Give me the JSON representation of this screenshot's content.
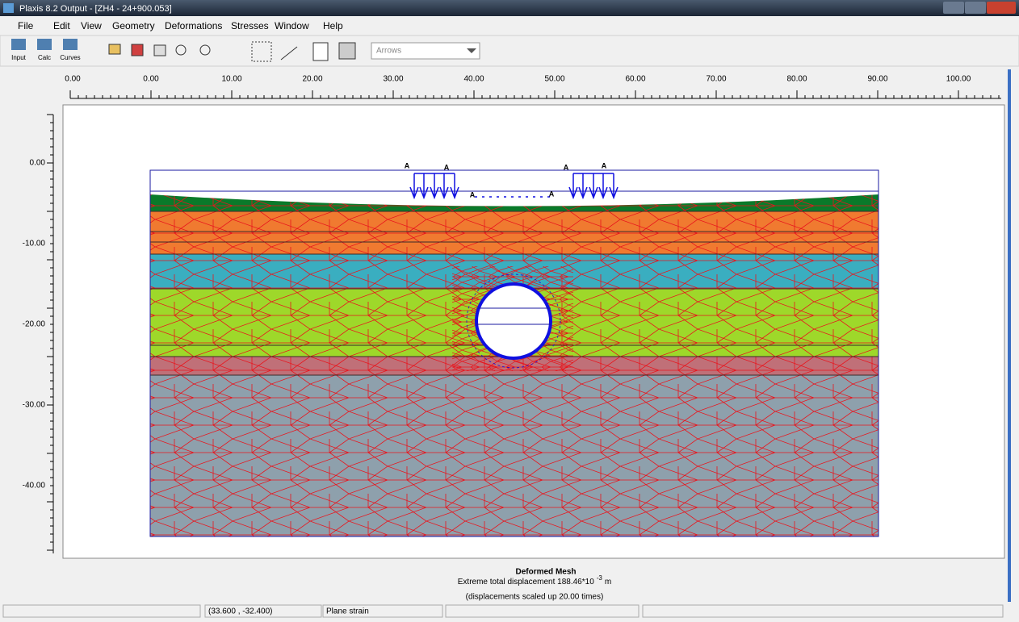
{
  "window": {
    "title": "Plaxis 8.2 Output - [ZH4 - 24+900.053]"
  },
  "menu": [
    "File",
    "Edit",
    "View",
    "Geometry",
    "Deformations",
    "Stresses",
    "Window",
    "Help"
  ],
  "toolbar": {
    "buttons": [
      "Input",
      "Calc",
      "Curves"
    ],
    "dropdown": "Arrows"
  },
  "ruler": {
    "x_labels": [
      "0.00",
      "0.00",
      "10.00",
      "20.00",
      "30.00",
      "40.00",
      "50.00",
      "60.00",
      "70.00",
      "80.00",
      "90.00",
      "100.00"
    ],
    "y_labels": [
      "0.00",
      "-10.00",
      "-20.00",
      "-30.00",
      "-40.00"
    ]
  },
  "model": {
    "load_labels": [
      "A",
      "A",
      "A",
      "A",
      "A",
      "A"
    ]
  },
  "caption": {
    "title": "Deformed Mesh",
    "line1": "Extreme total displacement 188.46*10",
    "exponent": "-3",
    "unit": "m",
    "line2": "(displacements scaled up 20.00 times)"
  },
  "status": [
    "(33.600 , -32.400)",
    "Plane strain"
  ]
}
